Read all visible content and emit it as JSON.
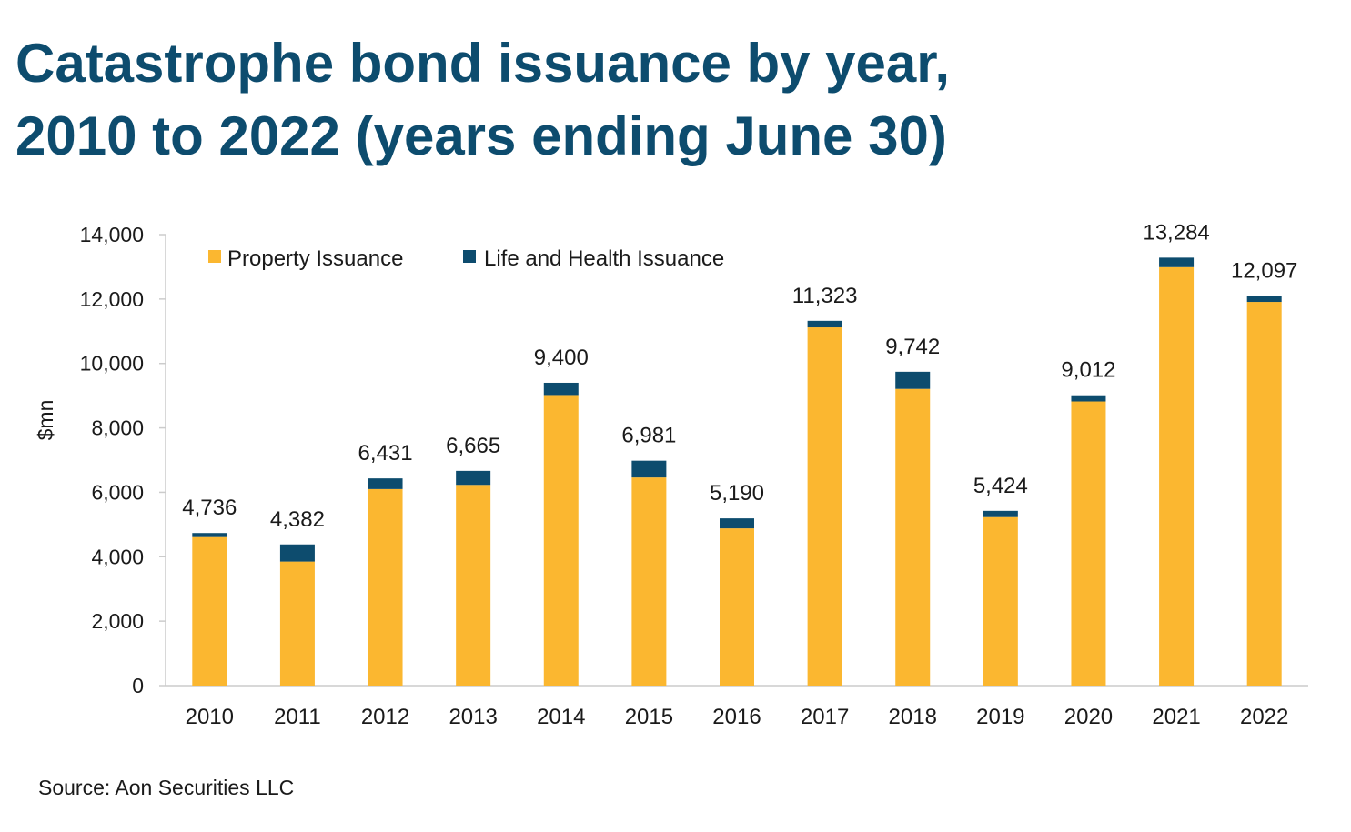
{
  "title_lines": [
    "Catastrophe bond issuance by year,",
    "2010 to 2022 (years ending June 30)"
  ],
  "source": "Source: Aon Securities LLC",
  "colors": {
    "title": "#0d4c6e",
    "property": "#fbb730",
    "life_health": "#0d4c6e",
    "axis": "#cccccc",
    "text": "#1a1a1a"
  },
  "chart_data": {
    "type": "bar",
    "stacked": true,
    "categories": [
      "2010",
      "2011",
      "2012",
      "2013",
      "2014",
      "2015",
      "2016",
      "2017",
      "2018",
      "2019",
      "2020",
      "2021",
      "2022"
    ],
    "series": [
      {
        "name": "Property Issuance",
        "color": "#fbb730",
        "values": [
          4610,
          3850,
          6100,
          6230,
          9020,
          6460,
          4880,
          11120,
          9210,
          5230,
          8820,
          12990,
          11910
        ]
      },
      {
        "name": "Life and Health Issuance",
        "color": "#0d4c6e",
        "values": [
          126,
          532,
          331,
          435,
          380,
          521,
          310,
          203,
          532,
          194,
          192,
          294,
          187
        ]
      }
    ],
    "totals": [
      "4,736",
      "4,382",
      "6,431",
      "6,665",
      "9,400",
      "6,981",
      "5,190",
      "11,323",
      "9,742",
      "5,424",
      "9,012",
      "13,284",
      "12,097"
    ],
    "xlabel": "",
    "ylabel": "$mn",
    "ylim": [
      0,
      14000
    ],
    "yticks": [
      "0",
      "2,000",
      "4,000",
      "6,000",
      "8,000",
      "10,000",
      "12,000",
      "14,000"
    ],
    "grid": false,
    "legend_position": "top-left"
  }
}
